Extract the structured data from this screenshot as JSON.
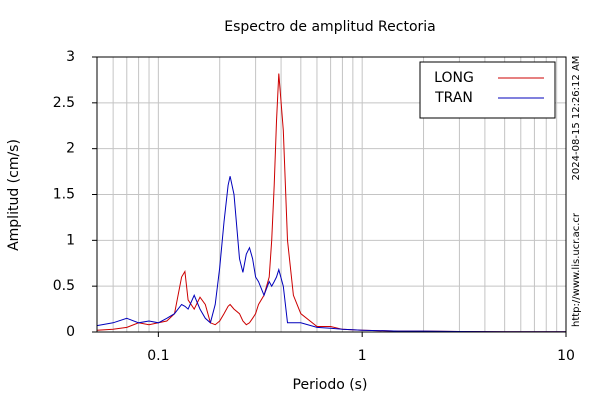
{
  "chart_data": {
    "type": "line",
    "title": "Espectro de amplitud Rectoria",
    "x_label": "Periodo (s)",
    "y_label": "Amplitud (cm/s)",
    "side_texts": [
      "2024-08-15 12:26:12 AM",
      "http://www.lis.ucr.ac.cr"
    ],
    "x_log": true,
    "grid": true,
    "legend": "upper-right",
    "xlim": [
      0.05,
      10
    ],
    "ylim": [
      0,
      3
    ],
    "xticks": [
      0.1,
      1,
      10
    ],
    "xminor_ticks": [
      0.06,
      0.07,
      0.08,
      0.09,
      0.2,
      0.3,
      0.4,
      0.5,
      0.6,
      0.7,
      0.8,
      0.9,
      2,
      3,
      4,
      5,
      6,
      7,
      8,
      9
    ],
    "yticks": [
      0,
      0.5,
      1,
      1.5,
      2,
      2.5,
      3
    ],
    "x": [
      0.05,
      0.06,
      0.07,
      0.08,
      0.09,
      0.1,
      0.11,
      0.12,
      0.13,
      0.135,
      0.14,
      0.15,
      0.16,
      0.17,
      0.18,
      0.19,
      0.2,
      0.21,
      0.22,
      0.225,
      0.235,
      0.25,
      0.26,
      0.27,
      0.28,
      0.29,
      0.3,
      0.31,
      0.33,
      0.35,
      0.36,
      0.37,
      0.38,
      0.39,
      0.41,
      0.43,
      0.46,
      0.5,
      0.6,
      0.7,
      0.8,
      1,
      1.5,
      2,
      3,
      5,
      10
    ],
    "series": [
      {
        "name": "LONG",
        "color": "#cc0000",
        "values": [
          0.02,
          0.03,
          0.05,
          0.1,
          0.08,
          0.1,
          0.12,
          0.2,
          0.6,
          0.66,
          0.35,
          0.25,
          0.38,
          0.3,
          0.1,
          0.08,
          0.12,
          0.2,
          0.28,
          0.3,
          0.25,
          0.2,
          0.12,
          0.08,
          0.1,
          0.15,
          0.2,
          0.3,
          0.4,
          0.6,
          1.0,
          1.6,
          2.3,
          2.82,
          2.2,
          1.0,
          0.4,
          0.2,
          0.06,
          0.06,
          0.03,
          0.02,
          0.01,
          0.01,
          0.005,
          0.003,
          0.002
        ]
      },
      {
        "name": "TRAN",
        "color": "#0000bb",
        "values": [
          0.07,
          0.1,
          0.15,
          0.1,
          0.12,
          0.1,
          0.15,
          0.2,
          0.3,
          0.28,
          0.25,
          0.4,
          0.25,
          0.15,
          0.1,
          0.3,
          0.7,
          1.2,
          1.6,
          1.7,
          1.5,
          0.8,
          0.65,
          0.85,
          0.92,
          0.8,
          0.6,
          0.55,
          0.4,
          0.55,
          0.5,
          0.55,
          0.6,
          0.68,
          0.5,
          0.1,
          0.1,
          0.1,
          0.05,
          0.04,
          0.03,
          0.02,
          0.01,
          0.01,
          0.005,
          0.003,
          0.002
        ]
      }
    ]
  }
}
